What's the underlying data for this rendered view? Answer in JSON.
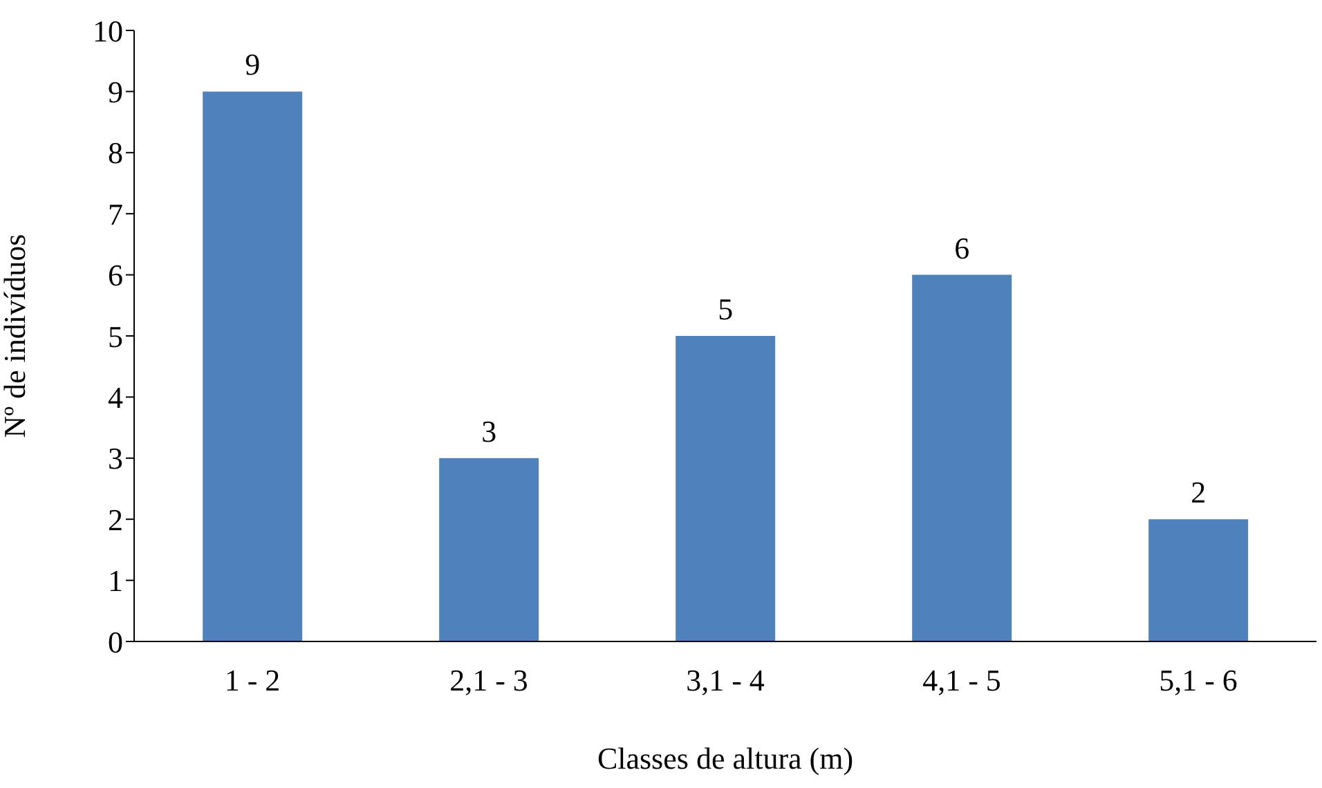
{
  "chart_data": {
    "type": "bar",
    "xlabel": "Classes de altura (m)",
    "ylabel": "Nº de indivíduos",
    "categories": [
      "1 - 2",
      "2,1 - 3",
      "3,1 - 4",
      "4,1 - 5",
      "5,1 - 6"
    ],
    "values": [
      9,
      3,
      5,
      6,
      2
    ],
    "color": "#4f81bd",
    "ylim": [
      0,
      10
    ],
    "yticks": [
      0,
      1,
      2,
      3,
      4,
      5,
      6,
      7,
      8,
      9,
      10
    ],
    "data_labels": true,
    "grid": false,
    "legend": false
  }
}
